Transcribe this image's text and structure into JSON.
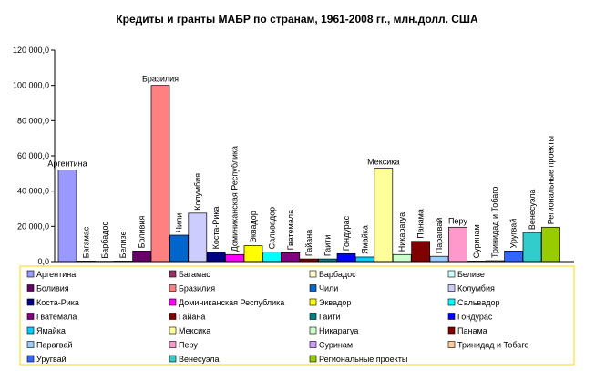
{
  "chart_data": {
    "type": "bar",
    "title": "Кредиты и гранты МАБР по странам, 1961-2008 гг., млн.долл. США",
    "categories": [
      "Аргентина",
      "Багамас",
      "Барбадос",
      "Белизе",
      "Боливия",
      "Бразилия",
      "Чили",
      "Колумбия",
      "Коста-Рика",
      "Доминиканская Республика",
      "Эквадор",
      "Сальвадор",
      "Гватемала",
      "Гайана",
      "Гаити",
      "Гондурас",
      "Ямайка",
      "Мексика",
      "Никарагуа",
      "Панама",
      "Парагвай",
      "Перу",
      "Суринам",
      "Тринидад и Тобаго",
      "Уругвай",
      "Венесуэла",
      "Региональные проекты"
    ],
    "values": [
      52000,
      300,
      200,
      300,
      6000,
      100000,
      15000,
      27500,
      5500,
      4000,
      9000,
      5500,
      5000,
      1500,
      1500,
      4500,
      2600,
      53000,
      4000,
      11500,
      3000,
      19500,
      300,
      500,
      6000,
      16500,
      19500
    ],
    "colors": [
      "#9999ff",
      "#993366",
      "#ffffcc",
      "#ccffff",
      "#660066",
      "#ff8080",
      "#0066cc",
      "#ccccff",
      "#000080",
      "#ff00ff",
      "#ffff00",
      "#00ffff",
      "#800080",
      "#800000",
      "#008080",
      "#0000ff",
      "#00ccff",
      "#ffff99",
      "#ccffcc",
      "#800000",
      "#99ccff",
      "#ff99cc",
      "#cc99ff",
      "#ffcc99",
      "#3366ff",
      "#33cccc",
      "#99cc00"
    ],
    "ylim": [
      0,
      120000
    ],
    "yticks": [
      {
        "value": 0,
        "label": "0,0"
      },
      {
        "value": 20000,
        "label": "20 000,0"
      },
      {
        "value": 40000,
        "label": "40 000,0"
      },
      {
        "value": 60000,
        "label": "60 000,0"
      },
      {
        "value": 80000,
        "label": "80 000,0"
      },
      {
        "value": 100000,
        "label": "100 000,0"
      },
      {
        "value": 120000,
        "label": "120 000,0"
      }
    ],
    "legend": "bottom"
  }
}
